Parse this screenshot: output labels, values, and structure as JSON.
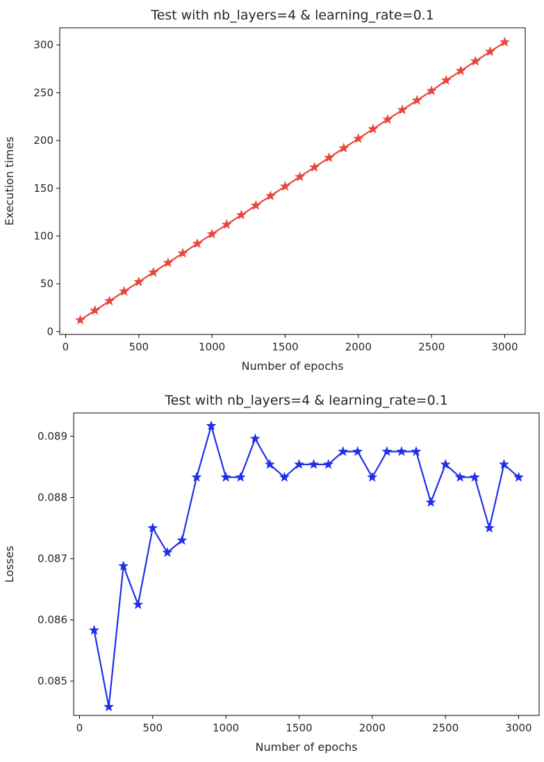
{
  "chart_data": [
    {
      "type": "line",
      "title": "Test with nb_layers=4 & learning_rate=0.1",
      "xlabel": "Number of epochs",
      "ylabel": "Execution times",
      "xlim": [
        -40,
        3140
      ],
      "ylim": [
        -3,
        318
      ],
      "xticks": [
        0,
        500,
        1000,
        1500,
        2000,
        2500,
        3000
      ],
      "yticks": [
        0,
        50,
        100,
        150,
        200,
        250,
        300
      ],
      "grid": false,
      "series": [
        {
          "color": "#e8453c",
          "marker": "star",
          "x": [
            100,
            200,
            300,
            400,
            500,
            600,
            700,
            800,
            900,
            1000,
            1100,
            1200,
            1300,
            1400,
            1500,
            1600,
            1700,
            1800,
            1900,
            2000,
            2100,
            2200,
            2300,
            2400,
            2500,
            2600,
            2700,
            2800,
            2900,
            3000
          ],
          "values": [
            12,
            22,
            32,
            42,
            52,
            62,
            72,
            82,
            92,
            102,
            112,
            122,
            132,
            142,
            152,
            162,
            172,
            182,
            192,
            202,
            212,
            222,
            232,
            242,
            252,
            263,
            273,
            283,
            293,
            303
          ]
        }
      ]
    },
    {
      "type": "line",
      "title": "Test with nb_layers=4 & learning_rate=0.1",
      "xlabel": "Number of epochs",
      "ylabel": "Losses",
      "xlim": [
        -40,
        3140
      ],
      "ylim": [
        0.08444,
        0.08938
      ],
      "xticks": [
        0,
        500,
        1000,
        1500,
        2000,
        2500,
        3000
      ],
      "yticks": [
        0.085,
        0.086,
        0.087,
        0.088,
        0.089
      ],
      "ytick_labels": [
        "0.085",
        "0.086",
        "0.087",
        "0.088",
        "0.089"
      ],
      "grid": false,
      "series": [
        {
          "color": "#1f2fe8",
          "marker": "star",
          "x": [
            100,
            200,
            300,
            400,
            500,
            600,
            700,
            800,
            900,
            1000,
            1100,
            1200,
            1300,
            1400,
            1500,
            1600,
            1700,
            1800,
            1900,
            2000,
            2100,
            2200,
            2300,
            2400,
            2500,
            2600,
            2700,
            2800,
            2900,
            3000
          ],
          "values": [
            0.08583,
            0.08458,
            0.08688,
            0.08625,
            0.0875,
            0.0871,
            0.0873,
            0.08833,
            0.08917,
            0.08833,
            0.08833,
            0.08896,
            0.08854,
            0.08833,
            0.08854,
            0.08854,
            0.08854,
            0.08875,
            0.08875,
            0.08833,
            0.08875,
            0.08875,
            0.08875,
            0.08792,
            0.08854,
            0.08833,
            0.08833,
            0.0875,
            0.08854,
            0.08833
          ]
        }
      ]
    }
  ]
}
